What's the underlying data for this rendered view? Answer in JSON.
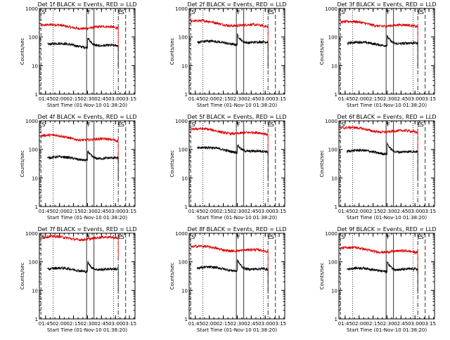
{
  "figure": {
    "ylabel": "Counts/sec",
    "xlabel": "Start Time (01-Nov-10 01:38:20)"
  },
  "colors": {
    "events": "#000000",
    "lld": "#e00000",
    "axes": "#000000"
  },
  "chart_data": [
    {
      "type": "line",
      "title": "Det 1f BLACK = Events, RED = LLD",
      "xlabel": "Start Time (01-Nov-10 01:38:20)",
      "ylabel": "Counts/sec",
      "yscale": "log",
      "ylim": [
        1,
        1000
      ],
      "x_tick_labels": [
        "01:45",
        "02:00",
        "02:15",
        "02:30",
        "02:45",
        "03:00",
        "03:15"
      ],
      "y_tick_labels": [
        "1",
        "10",
        "100",
        "1000"
      ],
      "x_range": [
        "01:38:20",
        "03:21:00"
      ],
      "flag_labels": [
        "S",
        "F",
        "E",
        "S"
      ],
      "series": [
        {
          "name": "LLD",
          "color": "red",
          "start": "01:40",
          "end": "03:03",
          "level_start": 250,
          "level_end": 200
        },
        {
          "name": "Events",
          "color": "black",
          "start": "01:47",
          "end": "03:03",
          "level_start": 55,
          "level_end": 45,
          "bump_at": "02:30",
          "bump_peak": 110
        }
      ]
    },
    {
      "type": "line",
      "title": "Det 2f BLACK = Events, RED = LLD",
      "xlabel": "Start Time (01-Nov-10 01:38:20)",
      "ylabel": "Counts/sec",
      "yscale": "log",
      "ylim": [
        1,
        1000
      ],
      "x_tick_labels": [
        "01:45",
        "02:00",
        "02:15",
        "02:30",
        "02:45",
        "03:00",
        "03:15"
      ],
      "y_tick_labels": [
        "1",
        "10",
        "100",
        "1000"
      ],
      "x_range": [
        "01:38:20",
        "03:21:00"
      ],
      "flag_labels": [
        "S",
        "F",
        "E",
        "S"
      ],
      "series": [
        {
          "name": "LLD",
          "color": "red",
          "start": "01:40",
          "end": "03:03",
          "level_start": 350,
          "level_end": 220
        },
        {
          "name": "Events",
          "color": "black",
          "start": "01:47",
          "end": "03:03",
          "level_start": 65,
          "level_end": 60,
          "bump_at": "02:30",
          "bump_peak": 130
        }
      ]
    },
    {
      "type": "line",
      "title": "Det 3f BLACK = Events, RED = LLD",
      "xlabel": "Start Time (01-Nov-10 01:38:20)",
      "ylabel": "Counts/sec",
      "yscale": "log",
      "ylim": [
        1,
        1000
      ],
      "x_tick_labels": [
        "01:45",
        "02:00",
        "02:15",
        "02:30",
        "02:45",
        "03:00",
        "03:15"
      ],
      "y_tick_labels": [
        "1",
        "10",
        "100",
        "1000"
      ],
      "x_range": [
        "01:38:20",
        "03:21:00"
      ],
      "flag_labels": [
        "S",
        "F",
        "E",
        "S"
      ],
      "series": [
        {
          "name": "LLD",
          "color": "red",
          "start": "01:40",
          "end": "03:03",
          "level_start": 330,
          "level_end": 220
        },
        {
          "name": "Events",
          "color": "black",
          "start": "01:47",
          "end": "03:03",
          "level_start": 60,
          "level_end": 55,
          "bump_at": "02:30",
          "bump_peak": 120
        }
      ]
    },
    {
      "type": "line",
      "title": "Det 4f BLACK = Events, RED = LLD",
      "xlabel": "Start Time (01-Nov-10 01:38:20)",
      "ylabel": "Counts/sec",
      "yscale": "log",
      "ylim": [
        1,
        1000
      ],
      "x_tick_labels": [
        "01:45",
        "02:00",
        "02:15",
        "02:30",
        "02:45",
        "03:00",
        "03:15"
      ],
      "y_tick_labels": [
        "1",
        "10",
        "100",
        "1000"
      ],
      "x_range": [
        "01:38:20",
        "03:21:00"
      ],
      "flag_labels": [
        "S",
        "F",
        "E",
        "S"
      ],
      "series": [
        {
          "name": "LLD",
          "color": "red",
          "start": "01:40",
          "end": "03:03",
          "level_start": 300,
          "level_end": 190
        },
        {
          "name": "Events",
          "color": "black",
          "start": "01:47",
          "end": "03:03",
          "level_start": 50,
          "level_end": 45,
          "bump_at": "02:30",
          "bump_peak": 100
        }
      ]
    },
    {
      "type": "line",
      "title": "Det 5f BLACK = Events, RED = LLD",
      "xlabel": "Start Time (01-Nov-10 01:38:20)",
      "ylabel": "Counts/sec",
      "yscale": "log",
      "ylim": [
        1,
        1000
      ],
      "x_tick_labels": [
        "01:45",
        "02:00",
        "02:15",
        "02:30",
        "02:45",
        "03:00",
        "03:15"
      ],
      "y_tick_labels": [
        "1",
        "10",
        "100",
        "1000"
      ],
      "x_range": [
        "01:38:20",
        "03:21:00"
      ],
      "flag_labels": [
        "S",
        "F",
        "E",
        "S"
      ],
      "series": [
        {
          "name": "LLD",
          "color": "red",
          "start": "01:40",
          "end": "03:03",
          "level_start": 500,
          "level_end": 320
        },
        {
          "name": "Events",
          "color": "black",
          "start": "01:47",
          "end": "03:03",
          "level_start": 110,
          "level_end": 75,
          "bump_at": "02:30",
          "bump_peak": 180
        }
      ]
    },
    {
      "type": "line",
      "title": "Det 6f BLACK = Events, RED = LLD",
      "xlabel": "Start Time (01-Nov-10 01:38:20)",
      "ylabel": "Counts/sec",
      "yscale": "log",
      "ylim": [
        1,
        1000
      ],
      "x_tick_labels": [
        "01:45",
        "02:00",
        "02:15",
        "02:30",
        "02:45",
        "03:00",
        "03:15"
      ],
      "y_tick_labels": [
        "1",
        "10",
        "100",
        "1000"
      ],
      "x_range": [
        "01:38:20",
        "03:21:00"
      ],
      "flag_labels": [
        "S",
        "F",
        "E",
        "S"
      ],
      "series": [
        {
          "name": "LLD",
          "color": "red",
          "start": "01:40",
          "end": "03:03",
          "level_start": 550,
          "level_end": 380
        },
        {
          "name": "Events",
          "color": "black",
          "start": "01:47",
          "end": "03:03",
          "level_start": 85,
          "level_end": 75,
          "bump_at": "02:30",
          "bump_peak": 180
        }
      ]
    },
    {
      "type": "line",
      "title": "Det 7f BLACK = Events, RED = LLD",
      "xlabel": "Start Time (01-Nov-10 01:38:20)",
      "ylabel": "Counts/sec",
      "yscale": "log",
      "ylim": [
        1,
        1000
      ],
      "x_tick_labels": [
        "01:45",
        "02:00",
        "02:15",
        "02:30",
        "02:45",
        "03:00",
        "03:15"
      ],
      "y_tick_labels": [
        "1",
        "10",
        "100",
        "1000"
      ],
      "x_range": [
        "01:38:20",
        "03:21:00"
      ],
      "flag_labels": [
        "S",
        "F",
        "E",
        "S"
      ],
      "series": [
        {
          "name": "LLD",
          "color": "red",
          "start": "01:40",
          "end": "03:03",
          "level_start": 700,
          "level_end": 650
        },
        {
          "name": "Events",
          "color": "black",
          "start": "01:47",
          "end": "03:03",
          "level_start": 55,
          "level_end": 50,
          "bump_at": "02:30",
          "bump_peak": 110
        }
      ]
    },
    {
      "type": "line",
      "title": "Det 8f BLACK = Events, RED = LLD",
      "xlabel": "Start Time (01-Nov-10 01:38:20)",
      "ylabel": "Counts/sec",
      "yscale": "log",
      "ylim": [
        1,
        1000
      ],
      "x_tick_labels": [
        "01:45",
        "02:00",
        "02:15",
        "02:30",
        "02:45",
        "03:00",
        "03:15"
      ],
      "y_tick_labels": [
        "1",
        "10",
        "100",
        "1000"
      ],
      "x_range": [
        "01:38:20",
        "03:21:00"
      ],
      "flag_labels": [
        "S",
        "F",
        "E",
        "S"
      ],
      "series": [
        {
          "name": "LLD",
          "color": "red",
          "start": "01:40",
          "end": "03:03",
          "level_start": 330,
          "level_end": 220
        },
        {
          "name": "Events",
          "color": "black",
          "start": "01:47",
          "end": "03:03",
          "level_start": 60,
          "level_end": 50,
          "bump_at": "02:30",
          "bump_peak": 130
        }
      ]
    },
    {
      "type": "line",
      "title": "Det 9f BLACK = Events, RED = LLD",
      "xlabel": "Start Time (01-Nov-10 01:38:20)",
      "ylabel": "Counts/sec",
      "yscale": "log",
      "ylim": [
        1,
        1000
      ],
      "x_tick_labels": [
        "01:45",
        "02:00",
        "02:15",
        "02:30",
        "02:45",
        "03:00",
        "03:15"
      ],
      "y_tick_labels": [
        "1",
        "10",
        "100",
        "1000"
      ],
      "x_range": [
        "01:38:20",
        "03:21:00"
      ],
      "flag_labels": [
        "S",
        "F",
        "E",
        "S"
      ],
      "series": [
        {
          "name": "LLD",
          "color": "red",
          "start": "01:40",
          "end": "03:03",
          "level_start": 300,
          "level_end": 200
        },
        {
          "name": "Events",
          "color": "black",
          "start": "01:47",
          "end": "03:03",
          "level_start": 55,
          "level_end": 50,
          "bump_at": "02:30",
          "bump_peak": 110
        }
      ]
    }
  ]
}
